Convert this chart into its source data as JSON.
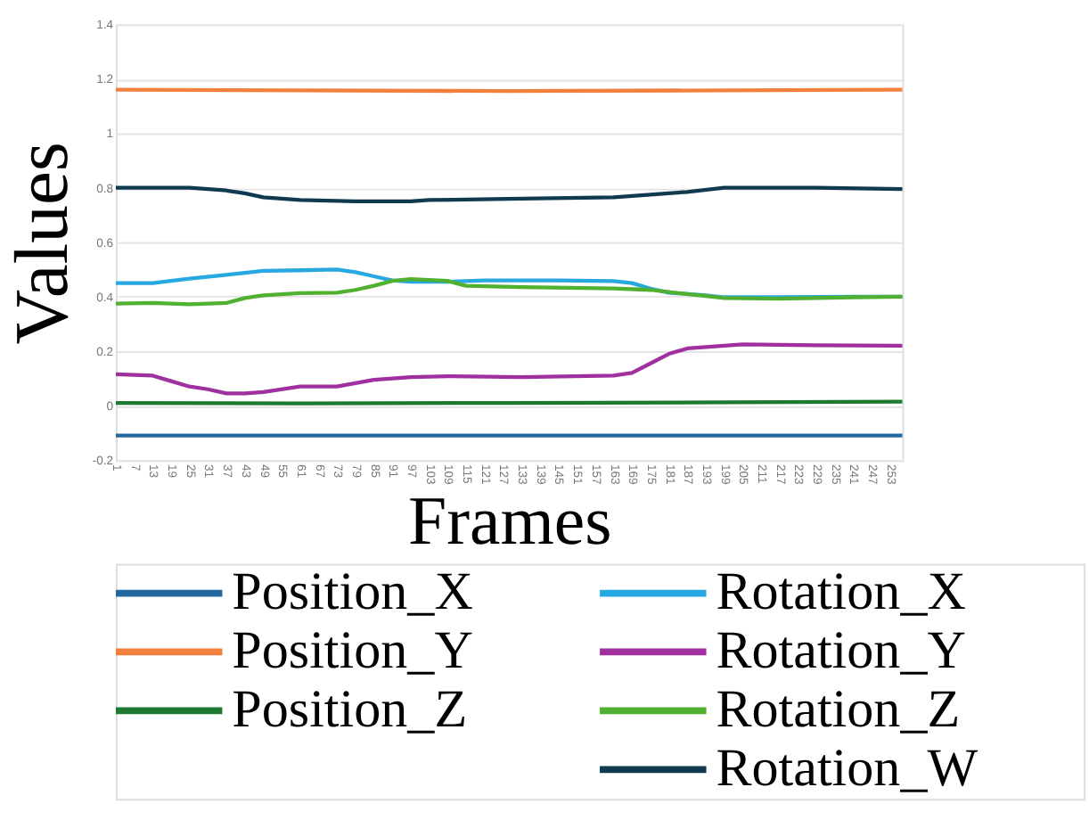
{
  "chart_data": {
    "type": "line",
    "xlabel": "Frames",
    "ylabel": "Values",
    "xlim": [
      1,
      257
    ],
    "xticks": [
      1,
      7,
      13,
      19,
      25,
      31,
      37,
      43,
      49,
      55,
      61,
      67,
      73,
      79,
      85,
      91,
      97,
      103,
      109,
      115,
      121,
      127,
      133,
      139,
      145,
      151,
      157,
      163,
      169,
      175,
      181,
      187,
      193,
      199,
      205,
      211,
      217,
      223,
      229,
      235,
      241,
      247,
      253
    ],
    "ylim": [
      -0.2,
      1.4
    ],
    "yticks": [
      -0.2,
      {
        "value": 0,
        "label": "0"
      },
      0.2,
      0.4,
      0.6,
      0.8,
      {
        "value": 1,
        "label": "1"
      },
      1.2,
      1.4
    ],
    "grid": "y",
    "legend": "bottom",
    "marker": "none",
    "line_style": "solid",
    "series": [
      {
        "name": "Position_X",
        "color": "#2468a0",
        "x": [
          1,
          129,
          257
        ],
        "values": [
          -0.11,
          -0.11,
          -0.11
        ]
      },
      {
        "name": "Position_Y",
        "color": "#f0803c",
        "x": [
          1,
          61,
          129,
          199,
          257
        ],
        "values": [
          1.16,
          1.158,
          1.155,
          1.158,
          1.16
        ]
      },
      {
        "name": "Position_Z",
        "color": "#1e7a30",
        "x": [
          1,
          61,
          129,
          199,
          257
        ],
        "values": [
          0.01,
          0.008,
          0.01,
          0.012,
          0.015
        ]
      },
      {
        "name": "Rotation_X",
        "color": "#28a8e0",
        "x": [
          1,
          13,
          25,
          37,
          49,
          61,
          73,
          79,
          85,
          91,
          97,
          109,
          121,
          145,
          163,
          169,
          175,
          181,
          193,
          199,
          217,
          241,
          257
        ],
        "values": [
          0.45,
          0.45,
          0.466,
          0.48,
          0.495,
          0.497,
          0.5,
          0.49,
          0.475,
          0.46,
          0.455,
          0.455,
          0.46,
          0.46,
          0.457,
          0.45,
          0.43,
          0.415,
          0.405,
          0.398,
          0.398,
          0.4,
          0.4
        ]
      },
      {
        "name": "Rotation_Y",
        "color": "#a0309f",
        "x": [
          1,
          13,
          19,
          25,
          31,
          37,
          43,
          49,
          61,
          73,
          85,
          97,
          109,
          133,
          163,
          169,
          175,
          181,
          187,
          199,
          205,
          229,
          257
        ],
        "values": [
          0.115,
          0.11,
          0.09,
          0.07,
          0.06,
          0.045,
          0.045,
          0.05,
          0.07,
          0.07,
          0.095,
          0.105,
          0.108,
          0.105,
          0.11,
          0.12,
          0.155,
          0.19,
          0.21,
          0.22,
          0.225,
          0.222,
          0.22
        ]
      },
      {
        "name": "Rotation_Z",
        "color": "#50b030",
        "x": [
          1,
          13,
          25,
          37,
          43,
          49,
          61,
          73,
          79,
          85,
          91,
          97,
          109,
          115,
          133,
          163,
          175,
          187,
          199,
          217,
          241,
          257
        ],
        "values": [
          0.375,
          0.377,
          0.372,
          0.377,
          0.395,
          0.405,
          0.413,
          0.415,
          0.425,
          0.44,
          0.458,
          0.465,
          0.458,
          0.44,
          0.435,
          0.43,
          0.425,
          0.41,
          0.395,
          0.393,
          0.398,
          0.4
        ]
      },
      {
        "name": "Rotation_W",
        "color": "#0f3a50",
        "x": [
          1,
          25,
          37,
          43,
          49,
          61,
          79,
          97,
          103,
          133,
          163,
          175,
          187,
          199,
          229,
          257
        ],
        "values": [
          0.8,
          0.8,
          0.79,
          0.78,
          0.765,
          0.755,
          0.75,
          0.75,
          0.755,
          0.76,
          0.765,
          0.775,
          0.785,
          0.8,
          0.8,
          0.795
        ]
      }
    ]
  }
}
